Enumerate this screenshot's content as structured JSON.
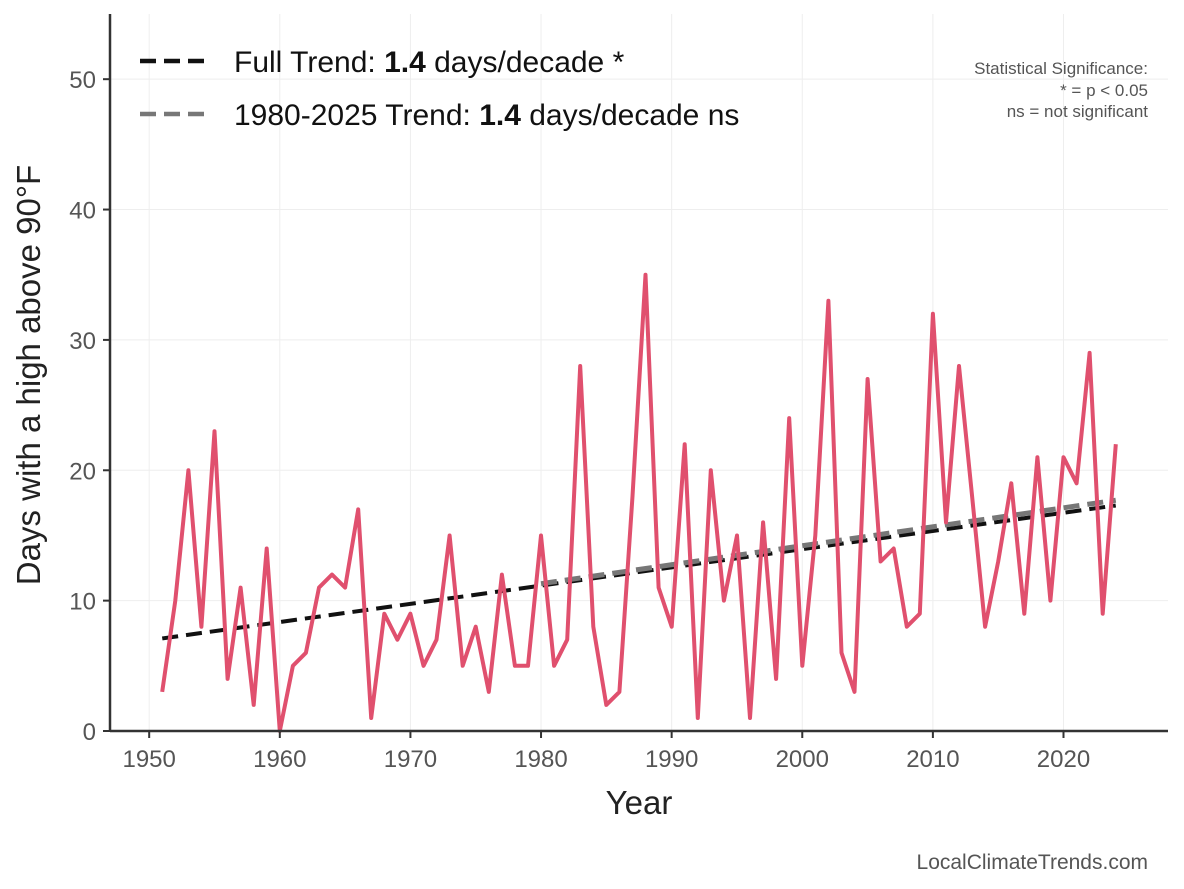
{
  "chart_data": {
    "type": "line",
    "xlabel": "Year",
    "ylabel": "Days with a high above 90°F",
    "xlim": [
      1947,
      2028
    ],
    "ylim": [
      0,
      55
    ],
    "x_ticks": [
      1950,
      1960,
      1970,
      1980,
      1990,
      2000,
      2010,
      2020
    ],
    "y_ticks": [
      0,
      10,
      20,
      30,
      40,
      50
    ],
    "grid": true,
    "legend_position": "top-left",
    "series": [
      {
        "color": "#e0506e",
        "x": [
          1951,
          1952,
          1953,
          1954,
          1955,
          1956,
          1957,
          1958,
          1959,
          1960,
          1961,
          1962,
          1963,
          1964,
          1965,
          1966,
          1967,
          1968,
          1969,
          1970,
          1971,
          1972,
          1973,
          1974,
          1975,
          1976,
          1977,
          1978,
          1979,
          1980,
          1981,
          1982,
          1983,
          1984,
          1985,
          1986,
          1987,
          1988,
          1989,
          1990,
          1991,
          1992,
          1993,
          1994,
          1995,
          1996,
          1997,
          1998,
          1999,
          2000,
          2001,
          2002,
          2003,
          2004,
          2005,
          2006,
          2007,
          2008,
          2009,
          2010,
          2011,
          2012,
          2013,
          2014,
          2015,
          2016,
          2017,
          2018,
          2019,
          2020,
          2021,
          2022,
          2023,
          2024
        ],
        "values": [
          3,
          10,
          20,
          8,
          23,
          4,
          11,
          2,
          14,
          0,
          5,
          6,
          11,
          12,
          11,
          17,
          1,
          9,
          7,
          9,
          5,
          7,
          15,
          5,
          8,
          3,
          12,
          5,
          5,
          15,
          5,
          7,
          28,
          8,
          2,
          3,
          18,
          35,
          11,
          8,
          22,
          1,
          20,
          10,
          15,
          1,
          16,
          4,
          24,
          5,
          15,
          33,
          6,
          3,
          27,
          13,
          14,
          8,
          9,
          32,
          16,
          28,
          18,
          8,
          13,
          19,
          9,
          21,
          10,
          21,
          19,
          29,
          9,
          22
        ]
      }
    ],
    "trends": [
      {
        "label_prefix": "Full Trend: ",
        "rate": "1.4",
        "label_suffix": " days/decade *",
        "color": "#111111",
        "x": [
          1951,
          2024
        ],
        "values": [
          7.1,
          17.3
        ]
      },
      {
        "label_prefix": "1980-2025 Trend: ",
        "rate": "1.4",
        "label_suffix": " days/decade ns",
        "color": "#777777",
        "x": [
          1980,
          2024
        ],
        "values": [
          11.3,
          17.7
        ]
      }
    ],
    "significance_note": [
      "Statistical Significance:",
      "* = p < 0.05",
      "ns = not significant"
    ],
    "credit": "LocalClimateTrends.com"
  }
}
